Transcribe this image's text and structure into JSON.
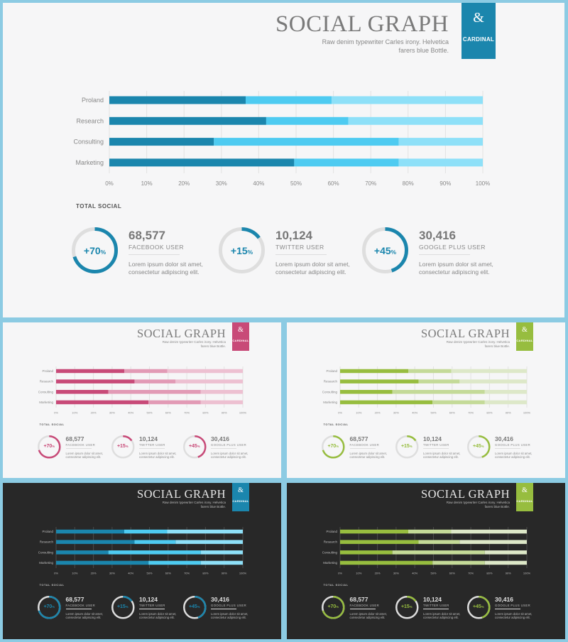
{
  "title": "SOCIAL GRAPH",
  "subtitle": "Raw denim typewriter Carles irony. Helvetica farers blue Bottle.",
  "tag": {
    "symbol": "&",
    "label": "CARDINAL"
  },
  "total_social_label": "TOTAL SOCIAL",
  "chart_data": {
    "type": "bar",
    "stacked": true,
    "orientation": "horizontal",
    "categories": [
      "Proland",
      "Research",
      "Consulting",
      "Marketing"
    ],
    "series": [
      {
        "values": [
          36.5,
          42,
          28,
          49.5
        ]
      },
      {
        "values": [
          23,
          22,
          49.5,
          28
        ]
      },
      {
        "values": [
          40.5,
          36,
          22.5,
          22.5
        ]
      }
    ],
    "x_ticks": [
      "0%",
      "10%",
      "20%",
      "30%",
      "40%",
      "50%",
      "60%",
      "70%",
      "80%",
      "90%",
      "100%"
    ],
    "xlim": [
      0,
      100
    ],
    "grid": true
  },
  "stats": [
    {
      "percent": "+70",
      "percent_unit": "%",
      "fill": 0.7,
      "value": "68,577",
      "label": "FACEBOOK USER",
      "desc1": "Lorem ipsum dolor sit amet,",
      "desc2": "consectetur adipiscing elit."
    },
    {
      "percent": "+15",
      "percent_unit": "%",
      "fill": 0.15,
      "value": "10,124",
      "label": "TWITTER USER",
      "desc1": "Lorem ipsum dolor sit amet,",
      "desc2": "consectetur adipiscing elit."
    },
    {
      "percent": "+45",
      "percent_unit": "%",
      "fill": 0.45,
      "value": "30,416",
      "label": "GOOGLE PLUS USER",
      "desc1": "Lorem ipsum dolor sit amet,",
      "desc2": "consectetur adipiscing elit."
    }
  ],
  "themes": [
    {
      "name": "blue-light",
      "background": "#f6f6f7",
      "text": "#888888",
      "title": "#7a7a7a",
      "bar": [
        "#1b86ad",
        "#4ecbf1",
        "#8ee0f8"
      ],
      "accent": "#1b86ad",
      "ring_track": "#dedede",
      "grid": "#e2e2e2"
    },
    {
      "name": "pink-light",
      "background": "#f6f6f7",
      "text": "#888888",
      "title": "#7a7a7a",
      "bar": [
        "#c84a78",
        "#e29ab5",
        "#edc0d1"
      ],
      "accent": "#c84a78",
      "ring_track": "#dedede",
      "grid": "#e2e2e2"
    },
    {
      "name": "green-light",
      "background": "#f6f6f7",
      "text": "#888888",
      "title": "#7a7a7a",
      "bar": [
        "#97bd3f",
        "#c4da98",
        "#dde8c8"
      ],
      "accent": "#97bd3f",
      "ring_track": "#dedede",
      "grid": "#e2e2e2"
    },
    {
      "name": "blue-dark",
      "background": "#282828",
      "text": "#bdbdbd",
      "title": "#e6e6e6",
      "bar": [
        "#1b86ad",
        "#4ecbf1",
        "#8ee0f8"
      ],
      "accent": "#1b86ad",
      "ring_track": "#dddddd",
      "grid": "#4a4a4a"
    },
    {
      "name": "green-dark",
      "background": "#282828",
      "text": "#bdbdbd",
      "title": "#e6e6e6",
      "bar": [
        "#97bd3f",
        "#c4da98",
        "#dde8c8"
      ],
      "accent": "#97bd3f",
      "ring_track": "#dddddd",
      "grid": "#4a4a4a"
    }
  ]
}
